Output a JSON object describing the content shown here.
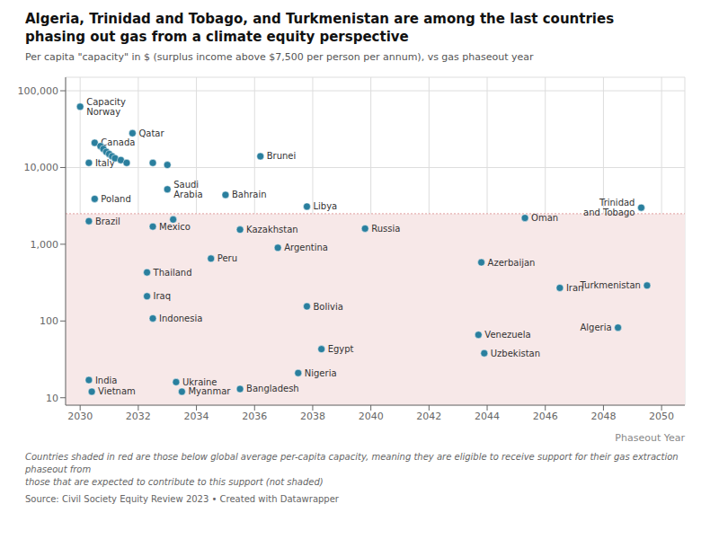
{
  "chart_data": {
    "type": "scatter",
    "title": "Algeria, Trinidad and Tobago, and Turkmenistan are among the last countries\nphasing out gas from a climate equity perspective",
    "subtitle": "Per capita \"capacity\" in $ (surplus income above $7,500 per person per annum), vs gas phaseout year",
    "footnote": "Countries shaded in red are those below global average per-capita capacity, meaning they are eligible to receive support for their gas extraction phaseout from\nthose that are expected to contribute to this support (not shaded)",
    "source": "Source: Civil Society Equity Review 2023 • Created with Datawrapper",
    "x_label": "Phaseout Year",
    "log": "y",
    "grid": true,
    "xlim": [
      2029.5,
      2050.8
    ],
    "xticks": [
      2030,
      2032,
      2034,
      2036,
      2038,
      2040,
      2042,
      2044,
      2046,
      2048,
      2050
    ],
    "ylim": [
      8,
      150000
    ],
    "yticks": [
      10,
      100,
      {
        "value": 1000,
        "label": "1,000"
      },
      {
        "value": 10000,
        "label": "10,000"
      },
      {
        "value": 100000,
        "label": "100,000"
      }
    ],
    "threshold": {
      "value": 2500,
      "line_color": "#e0a0a0",
      "shaded_color": "#f7e8e8"
    },
    "series": [
      {
        "color": "#2a7f9e",
        "x": [
          2030.0,
          2030.5,
          2030.3,
          2031.8,
          2030.5,
          2030.3,
          2030.3,
          2030.4,
          2033.0,
          2032.5,
          2032.3,
          2032.3,
          2032.5,
          2033.3,
          2033.5,
          2035.0,
          2036.2,
          2035.5,
          2034.5,
          2035.5,
          2037.5,
          2037.8,
          2036.8,
          2037.8,
          2038.3,
          2039.8,
          2043.8,
          2043.7,
          2043.9,
          2045.3,
          2046.5,
          2049.3,
          2049.5,
          2048.5
        ],
        "values": [
          62000,
          21000,
          11500,
          28000,
          3900,
          2000,
          17,
          12,
          5200,
          1700,
          430,
          210,
          108,
          16,
          12,
          4400,
          14000,
          1550,
          650,
          13,
          21,
          3100,
          900,
          155,
          43,
          1600,
          580,
          66,
          38,
          2200,
          270,
          3000,
          290,
          82
        ],
        "labels": [
          "Capacity\nNorway",
          "Canada",
          "Italy",
          "Qatar",
          "Poland",
          "Brazil",
          "India",
          "Vietnam",
          "Saudi\nArabia",
          "Mexico",
          "Thailand",
          "Iraq",
          "Indonesia",
          "Ukraine",
          "Myanmar",
          "Bahrain",
          "Brunei",
          "Kazakhstan",
          "Peru",
          "Bangladesh",
          "Nigeria",
          "Libya",
          "Argentina",
          "Bolivia",
          "Egypt",
          "Russia",
          "Azerbaijan",
          "Venezuela",
          "Uzbekistan",
          "Oman",
          "Iran",
          "Trinidad\nand Tobago",
          "Turkmenistan",
          "Algeria"
        ]
      },
      {
        "color": "#2a7f9e",
        "x": [
          2030.7,
          2030.8,
          2030.9,
          2031.0,
          2031.1,
          2031.2,
          2031.4,
          2031.6,
          2032.5,
          2033.0,
          2033.2
        ],
        "values": [
          19000,
          17500,
          16000,
          15000,
          14000,
          13200,
          12500,
          11500,
          11500,
          10800,
          2100
        ]
      }
    ]
  }
}
